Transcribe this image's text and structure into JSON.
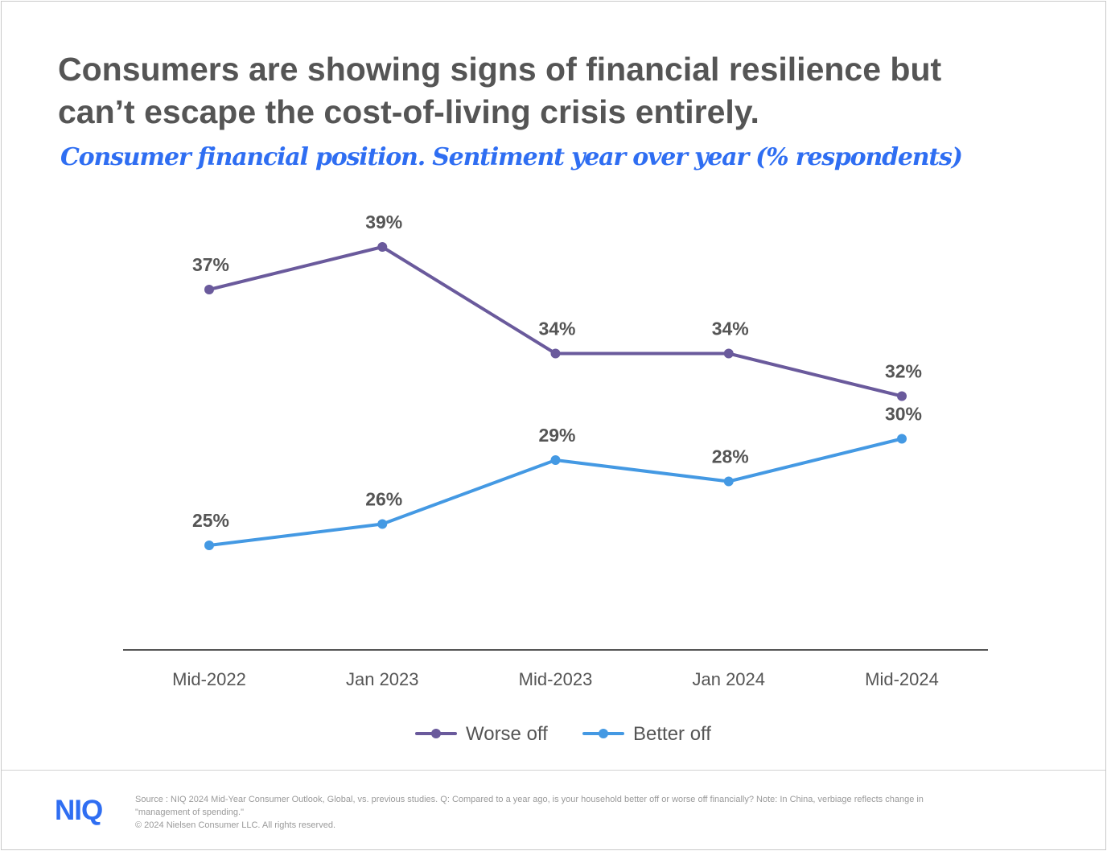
{
  "header": {
    "title": "Consumers are showing signs of financial resilience but can’t escape the cost-of-living crisis entirely.",
    "subtitle": "Consumer financial position. Sentiment year over year (% respondents)"
  },
  "chart_data": {
    "type": "line",
    "categories": [
      "Mid-2022",
      "Jan 2023",
      "Mid-2023",
      "Jan 2024",
      "Mid-2024"
    ],
    "series": [
      {
        "name": "Worse off",
        "values": [
          37,
          39,
          34,
          34,
          32
        ],
        "labels": [
          "37%",
          "39%",
          "34%",
          "34%",
          "32%"
        ],
        "color": "#6a5a9c"
      },
      {
        "name": "Better off",
        "values": [
          25,
          26,
          29,
          28,
          30
        ],
        "labels": [
          "25%",
          "26%",
          "29%",
          "28%",
          "30%"
        ],
        "color": "#4499e3"
      }
    ],
    "unit": "%",
    "legend": "bottom",
    "grid": false
  },
  "footer": {
    "logo": "NIQ",
    "source": "Source : NIQ 2024 Mid-Year Consumer Outlook, Global, vs. previous studies. Q: Compared to a year ago, is your household better off or worse off financially? Note: In China, verbiage reflects change in \"management of spending.\"",
    "copyright": "© 2024 Nielsen Consumer LLC. All rights reserved."
  }
}
